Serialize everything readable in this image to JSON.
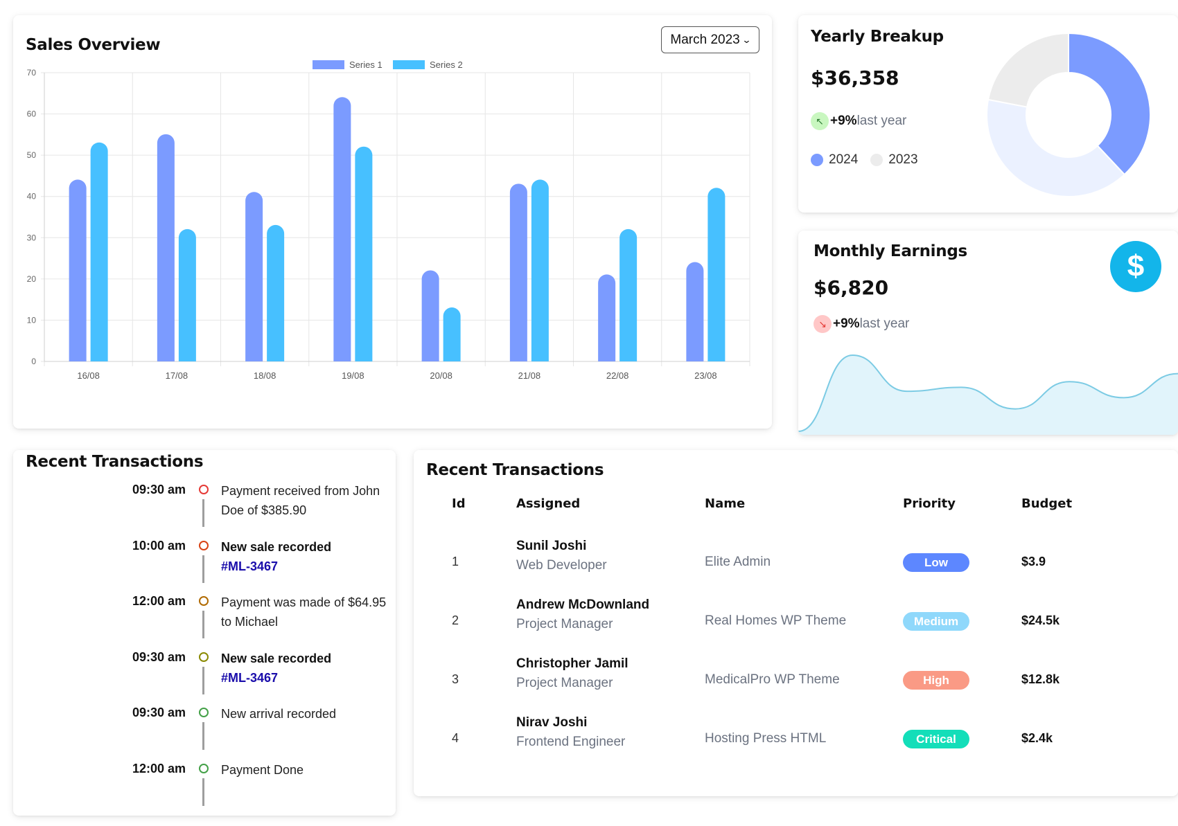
{
  "sales_overview": {
    "title": "Sales Overview",
    "month_select": "March 2023"
  },
  "chart_data": {
    "type": "bar",
    "categories": [
      "16/08",
      "17/08",
      "18/08",
      "19/08",
      "20/08",
      "21/08",
      "22/08",
      "23/08"
    ],
    "series": [
      {
        "name": "Series 1",
        "color": "#7b9bff",
        "values": [
          44,
          55,
          41,
          64,
          22,
          43,
          21,
          24
        ]
      },
      {
        "name": "Series 2",
        "color": "#47c0ff",
        "values": [
          53,
          32,
          33,
          52,
          13,
          44,
          32,
          42
        ]
      }
    ],
    "ylim": [
      0,
      70
    ],
    "yticks": [
      0,
      10,
      20,
      30,
      40,
      50,
      60,
      70
    ],
    "grid": true,
    "legend": "top-center"
  },
  "yearly_breakup": {
    "title": "Yearly Breakup",
    "amount": "$36,358",
    "trend_pct": "+9%",
    "trend_note": "last year",
    "trend_color": "#2e7d32",
    "trend_bg": "#c9f7c0",
    "legend": [
      {
        "label": "2024",
        "color": "#7b9bff"
      },
      {
        "label": "2023",
        "color": "#ececec"
      }
    ],
    "donut": [
      {
        "value": 38,
        "color": "#7b9bff"
      },
      {
        "value": 40,
        "color": "#ebf1ff"
      },
      {
        "value": 22,
        "color": "#ececec"
      }
    ]
  },
  "monthly_earnings": {
    "title": "Monthly Earnings",
    "amount": "$6,820",
    "trend_pct": "+9%",
    "trend_note": "last year",
    "trend_color": "#e53935",
    "trend_bg": "#ffc7c7",
    "icon": "dollar-icon",
    "icon_symbol": "$",
    "sparkline": [
      0,
      95,
      50,
      55,
      28,
      62,
      42,
      72
    ]
  },
  "timeline": {
    "title": "Recent Transactions",
    "items": [
      {
        "time": "09:30 am",
        "text": "Payment received from John Doe of $385.90",
        "bold": false,
        "link": "",
        "dot": "#e53935"
      },
      {
        "time": "10:00 am",
        "text": "New sale recorded",
        "bold": true,
        "link": "#ML-3467",
        "dot": "#d84315"
      },
      {
        "time": "12:00 am",
        "text": "Payment was made of $64.95 to Michael",
        "bold": false,
        "link": "",
        "dot": "#b06a00"
      },
      {
        "time": "09:30 am",
        "text": "New sale recorded",
        "bold": true,
        "link": "#ML-3467",
        "dot": "#8a8a00"
      },
      {
        "time": "09:30 am",
        "text": "New arrival recorded",
        "bold": false,
        "link": "",
        "dot": "#43a047"
      },
      {
        "time": "12:00 am",
        "text": "Payment Done",
        "bold": false,
        "link": "",
        "dot": "#43a047"
      }
    ]
  },
  "transactions_table": {
    "title": "Recent Transactions",
    "headers": {
      "id": "Id",
      "assigned": "Assigned",
      "name": "Name",
      "priority": "Priority",
      "budget": "Budget"
    },
    "rows": [
      {
        "id": "1",
        "person": "Sunil Joshi",
        "role": "Web Developer",
        "project": "Elite Admin",
        "priority": "Low",
        "priority_color": "#5d87ff",
        "budget": "$3.9"
      },
      {
        "id": "2",
        "person": "Andrew McDownland",
        "role": "Project Manager",
        "project": "Real Homes WP Theme",
        "priority": "Medium",
        "priority_color": "#8fd8fb",
        "budget": "$24.5k"
      },
      {
        "id": "3",
        "person": "Christopher Jamil",
        "role": "Project Manager",
        "project": "MedicalPro WP Theme",
        "priority": "High",
        "priority_color": "#fa9a85",
        "budget": "$12.8k"
      },
      {
        "id": "4",
        "person": "Nirav Joshi",
        "role": "Frontend Engineer",
        "project": "Hosting Press HTML",
        "priority": "Critical",
        "priority_color": "#13deb9",
        "budget": "$2.4k"
      }
    ]
  }
}
